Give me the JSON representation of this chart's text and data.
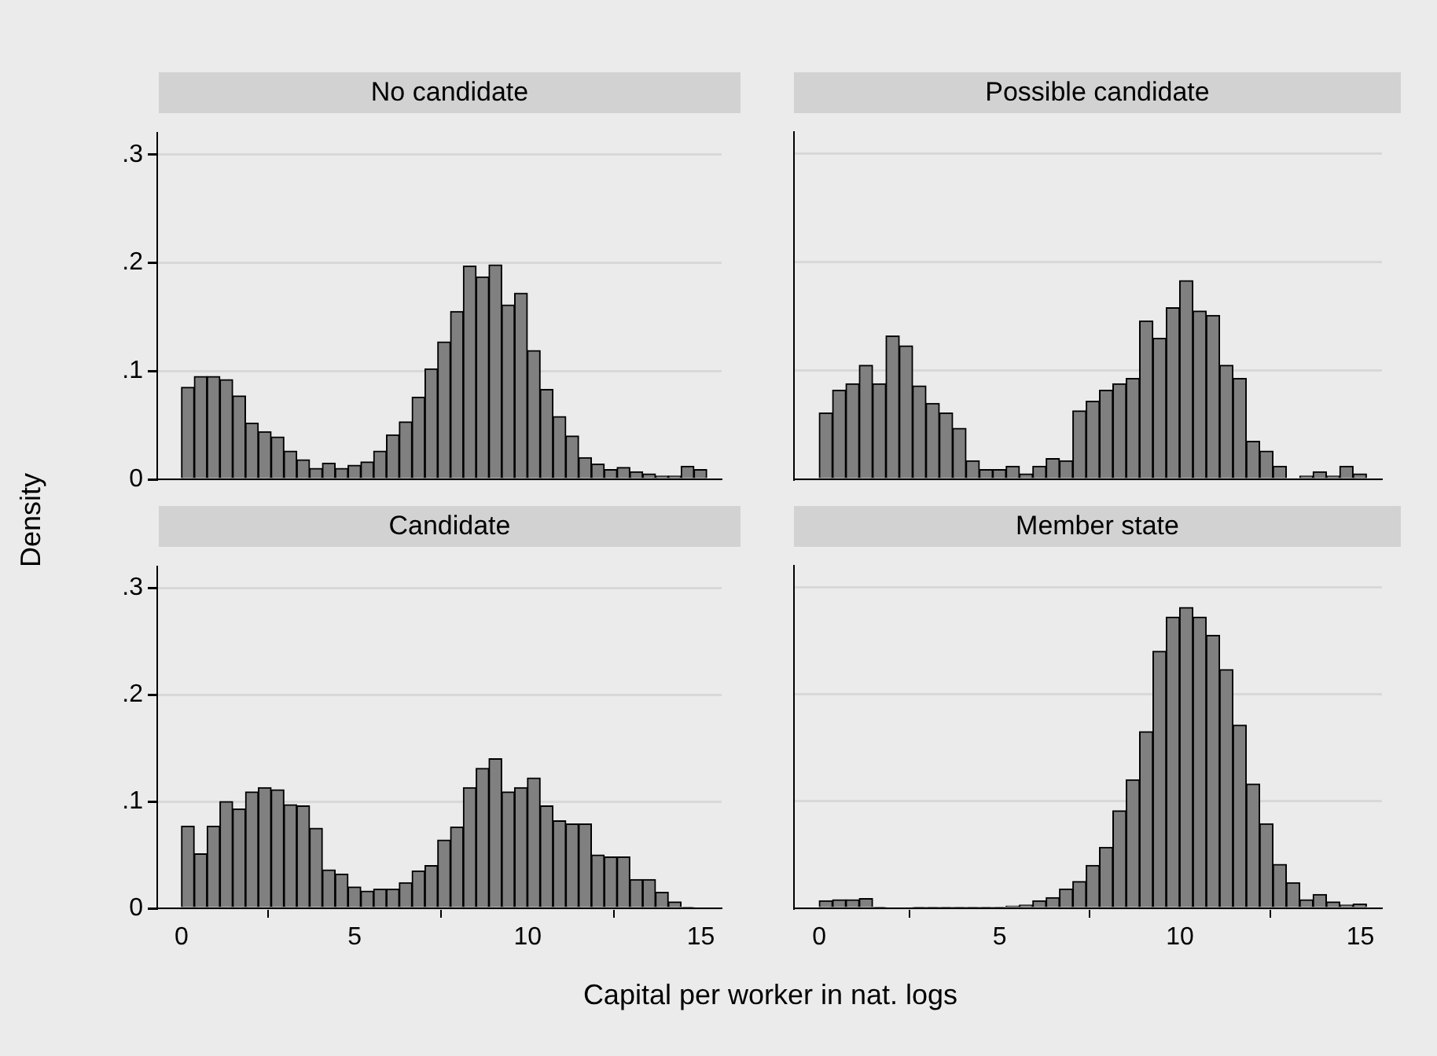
{
  "chart_data": [
    {
      "type": "histogram",
      "title": "No candidate",
      "ylabel": "Density",
      "color": "#808080",
      "grid": "y",
      "tick_labels": "y",
      "xlim": [
        -0.7,
        15.6
      ],
      "xticks": [
        0,
        5,
        10,
        15
      ],
      "ylim": [
        0,
        0.32
      ],
      "yticks": [
        0,
        {
          "value": 0.1,
          "label": ".1"
        },
        {
          "value": 0.2,
          "label": ".2"
        },
        {
          "value": 0.3,
          "label": ".3"
        }
      ],
      "bins": [
        0,
        0.37,
        0.74,
        1.11,
        1.48,
        1.85,
        2.22,
        2.59,
        2.96,
        3.33,
        3.7,
        4.07,
        4.44,
        4.81,
        5.18,
        5.55,
        5.92,
        6.29,
        6.66,
        7.03,
        7.4,
        7.77,
        8.14,
        8.51,
        8.88,
        9.25,
        9.62,
        9.99,
        10.36,
        10.73,
        11.1,
        11.47,
        11.84,
        12.21,
        12.58,
        12.95,
        13.32,
        13.69,
        14.06,
        14.43,
        14.8,
        15.17
      ],
      "values": [
        0.085,
        0.095,
        0.095,
        0.092,
        0.077,
        0.052,
        0.044,
        0.039,
        0.026,
        0.018,
        0.01,
        0.015,
        0.01,
        0.013,
        0.016,
        0.026,
        0.041,
        0.053,
        0.076,
        0.102,
        0.127,
        0.155,
        0.197,
        0.187,
        0.198,
        0.161,
        0.172,
        0.119,
        0.083,
        0.058,
        0.04,
        0.02,
        0.014,
        0.009,
        0.011,
        0.007,
        0.005,
        0.003,
        0.003,
        0.012,
        0.009
      ]
    },
    {
      "type": "histogram",
      "title": "Possible candidate",
      "color": "#808080",
      "grid": "y",
      "tick_labels": false,
      "xlim": [
        -0.7,
        15.6
      ],
      "xticks": [
        0,
        5,
        10,
        15
      ],
      "ylim": [
        0,
        0.32
      ],
      "yticks": [
        0,
        0.1,
        0.2,
        0.3
      ],
      "bins": [
        0,
        0.37,
        0.74,
        1.11,
        1.48,
        1.85,
        2.22,
        2.59,
        2.96,
        3.33,
        3.7,
        4.07,
        4.44,
        4.81,
        5.18,
        5.55,
        5.92,
        6.29,
        6.66,
        7.03,
        7.4,
        7.77,
        8.14,
        8.51,
        8.88,
        9.25,
        9.62,
        9.99,
        10.36,
        10.73,
        11.1,
        11.47,
        11.84,
        12.21,
        12.58,
        12.95,
        13.32,
        13.69,
        14.06,
        14.43,
        14.8,
        15.17
      ],
      "values": [
        0.061,
        0.082,
        0.088,
        0.105,
        0.088,
        0.132,
        0.123,
        0.086,
        0.07,
        0.061,
        0.047,
        0.017,
        0.009,
        0.009,
        0.012,
        0.005,
        0.012,
        0.019,
        0.017,
        0.063,
        0.072,
        0.082,
        0.088,
        0.093,
        0.146,
        0.13,
        0.158,
        0.183,
        0.155,
        0.151,
        0.105,
        0.093,
        0.035,
        0.026,
        0.012,
        0,
        0.003,
        0.007,
        0.003,
        0.012,
        0.005
      ]
    },
    {
      "type": "histogram",
      "title": "Candidate",
      "xlabel": "Capital per worker in nat. logs",
      "color": "#808080",
      "grid": "y",
      "xlim": [
        -0.7,
        15.6
      ],
      "xticks": [
        0,
        5,
        10,
        15
      ],
      "ylim": [
        0,
        0.32
      ],
      "yticks": [
        0,
        {
          "value": 0.1,
          "label": ".1"
        },
        {
          "value": 0.2,
          "label": ".2"
        },
        {
          "value": 0.3,
          "label": ".3"
        }
      ],
      "bins": [
        0,
        0.37,
        0.74,
        1.11,
        1.48,
        1.85,
        2.22,
        2.59,
        2.96,
        3.33,
        3.7,
        4.07,
        4.44,
        4.81,
        5.18,
        5.55,
        5.92,
        6.29,
        6.66,
        7.03,
        7.4,
        7.77,
        8.14,
        8.51,
        8.88,
        9.25,
        9.62,
        9.99,
        10.36,
        10.73,
        11.1,
        11.47,
        11.84,
        12.21,
        12.58,
        12.95,
        13.32,
        13.69,
        14.06,
        14.43,
        14.8,
        15.17
      ],
      "values": [
        0.077,
        0.051,
        0.077,
        0.1,
        0.093,
        0.109,
        0.113,
        0.111,
        0.097,
        0.096,
        0.075,
        0.036,
        0.032,
        0.02,
        0.016,
        0.018,
        0.018,
        0.024,
        0.035,
        0.04,
        0.064,
        0.076,
        0.113,
        0.131,
        0.14,
        0.109,
        0.113,
        0.122,
        0.096,
        0.082,
        0.079,
        0.079,
        0.05,
        0.048,
        0.048,
        0.027,
        0.027,
        0.015,
        0.006,
        0.001,
        0
      ]
    },
    {
      "type": "histogram",
      "title": "Member state",
      "color": "#808080",
      "grid": "y",
      "tick_labels": "x",
      "xlim": [
        -0.7,
        15.6
      ],
      "xticks": [
        0,
        5,
        10,
        15
      ],
      "ylim": [
        0,
        0.32
      ],
      "yticks": [
        0,
        0.1,
        0.2,
        0.3
      ],
      "bins": [
        0,
        0.37,
        0.74,
        1.11,
        1.48,
        1.85,
        2.22,
        2.59,
        2.96,
        3.33,
        3.7,
        4.07,
        4.44,
        4.81,
        5.18,
        5.55,
        5.92,
        6.29,
        6.66,
        7.03,
        7.4,
        7.77,
        8.14,
        8.51,
        8.88,
        9.25,
        9.62,
        9.99,
        10.36,
        10.73,
        11.1,
        11.47,
        11.84,
        12.21,
        12.58,
        12.95,
        13.32,
        13.69,
        14.06,
        14.43,
        14.8,
        15.17
      ],
      "values": [
        0.007,
        0.008,
        0.008,
        0.009,
        0.001,
        0,
        0,
        0.001,
        0.001,
        0.001,
        0.001,
        0.001,
        0.001,
        0.001,
        0.002,
        0.003,
        0.007,
        0.01,
        0.018,
        0.025,
        0.04,
        0.057,
        0.091,
        0.12,
        0.165,
        0.24,
        0.272,
        0.281,
        0.272,
        0.255,
        0.223,
        0.171,
        0.116,
        0.079,
        0.041,
        0.024,
        0.008,
        0.013,
        0.006,
        0.003,
        0.004
      ]
    }
  ]
}
